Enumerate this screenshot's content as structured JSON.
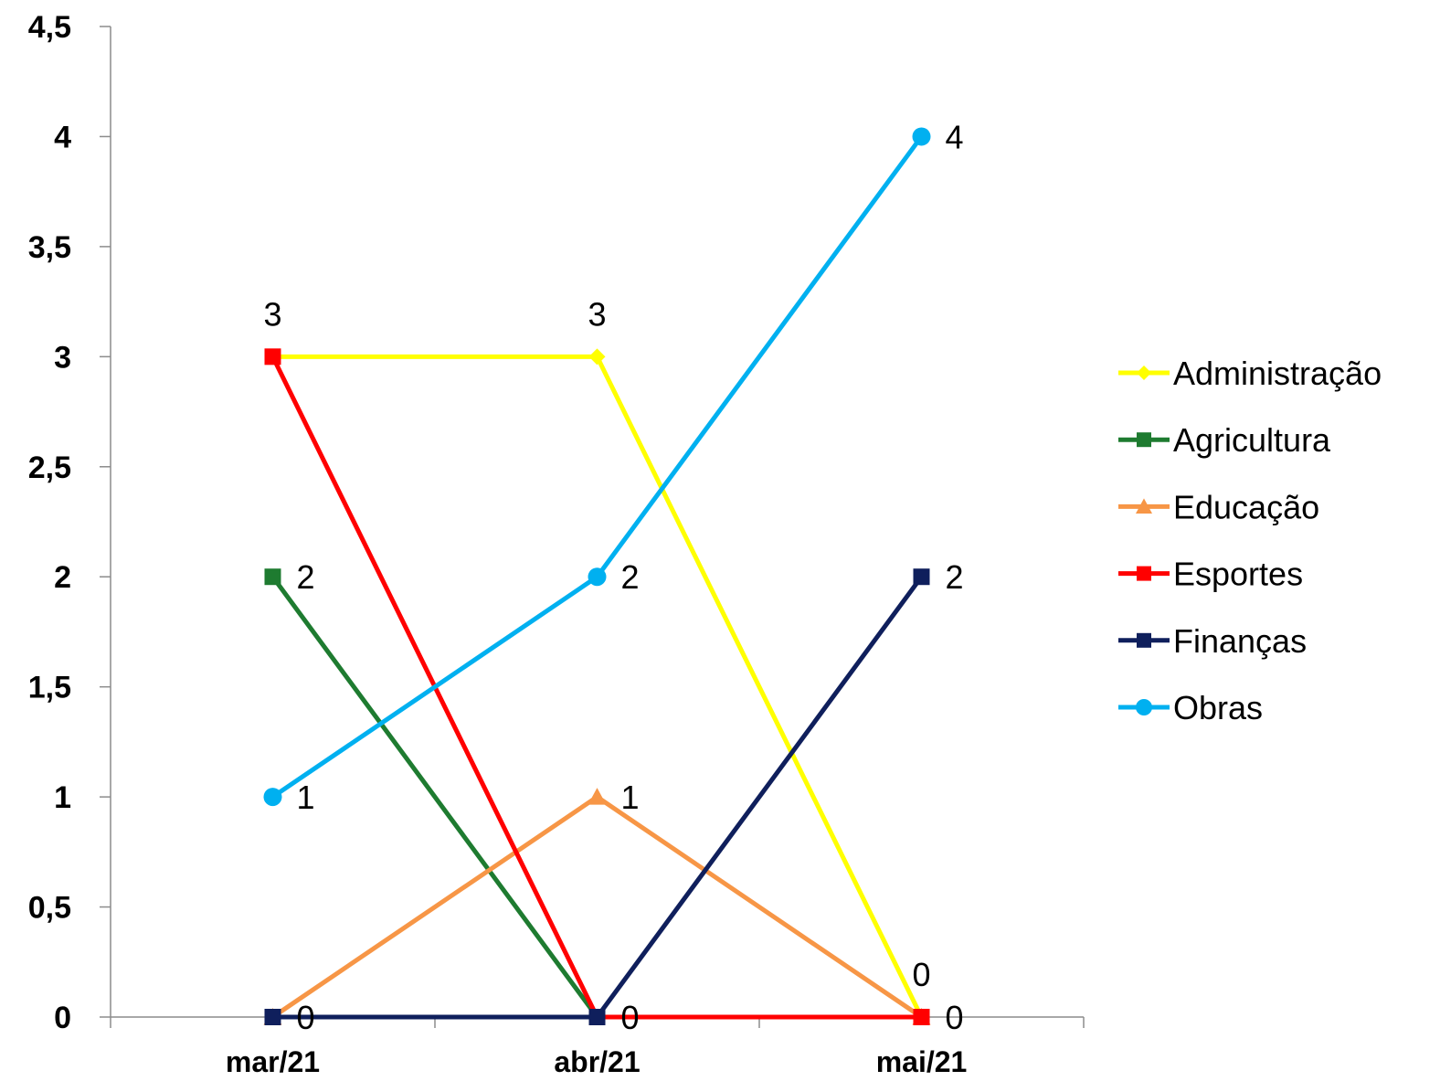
{
  "chart_data": {
    "type": "line",
    "categories": [
      "mar/21",
      "abr/21",
      "mai/21"
    ],
    "ylim": [
      0,
      4.5
    ],
    "yticks": [
      "0",
      "0,5",
      "1",
      "1,5",
      "2",
      "2,5",
      "3",
      "3,5",
      "4",
      "4,5"
    ],
    "grid": false,
    "legend_position": "right",
    "series": [
      {
        "name": "Administração",
        "values": [
          3,
          3,
          0
        ],
        "color": "#FFFF00",
        "marker": "diamond"
      },
      {
        "name": "Agricultura",
        "values": [
          2,
          0,
          0
        ],
        "color": "#1E7B30",
        "marker": "square"
      },
      {
        "name": "Educação",
        "values": [
          0,
          1,
          0
        ],
        "color": "#F79646",
        "marker": "triangle"
      },
      {
        "name": "Esportes",
        "values": [
          3,
          0,
          0
        ],
        "color": "#FF0000",
        "marker": "square"
      },
      {
        "name": "Finanças",
        "values": [
          0,
          0,
          2
        ],
        "color": "#0F1F5C",
        "marker": "square"
      },
      {
        "name": "Obras",
        "values": [
          1,
          2,
          4
        ],
        "color": "#00B0F0",
        "marker": "circle"
      }
    ],
    "data_labels": [
      {
        "series": "Administração",
        "category": "mar/21",
        "text": "3",
        "pos": "above"
      },
      {
        "series": "Administração",
        "category": "abr/21",
        "text": "3",
        "pos": "above"
      },
      {
        "series": "Administração",
        "category": "mai/21",
        "text": "0",
        "pos": "above"
      },
      {
        "series": "Agricultura",
        "category": "mar/21",
        "text": "2",
        "pos": "right"
      },
      {
        "series": "Agricultura",
        "category": "abr/21",
        "text": "0",
        "pos": "right"
      },
      {
        "series": "Educação",
        "category": "abr/21",
        "text": "1",
        "pos": "right"
      },
      {
        "series": "Esportes",
        "category": "mai/21",
        "text": "0",
        "pos": "right"
      },
      {
        "series": "Finanças",
        "category": "mar/21",
        "text": "0",
        "pos": "right"
      },
      {
        "series": "Finanças",
        "category": "mai/21",
        "text": "2",
        "pos": "right"
      },
      {
        "series": "Obras",
        "category": "mar/21",
        "text": "1",
        "pos": "right"
      },
      {
        "series": "Obras",
        "category": "abr/21",
        "text": "2",
        "pos": "right"
      },
      {
        "series": "Obras",
        "category": "mai/21",
        "text": "4",
        "pos": "right"
      }
    ]
  }
}
